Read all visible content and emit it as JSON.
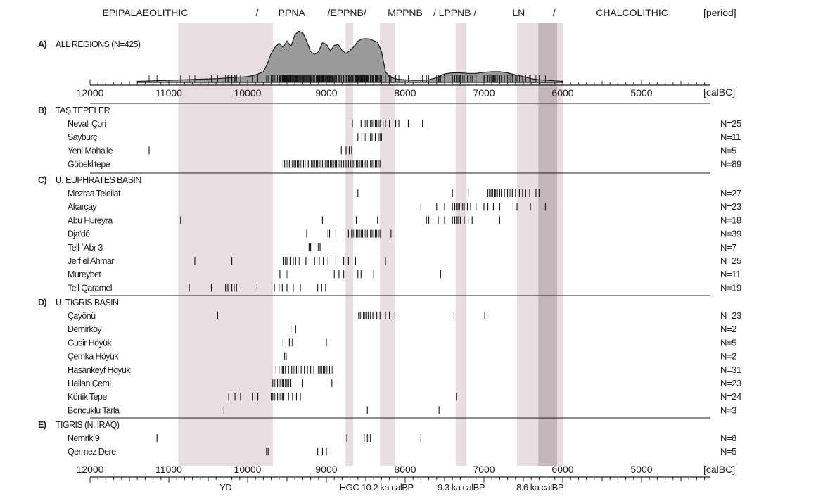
{
  "chart_data": {
    "type": "event-plot",
    "x_axis": {
      "range": [
        12000,
        6000
      ],
      "ticks": [
        "12000",
        "11000",
        "10000",
        "9000",
        "8000",
        "7000",
        "6000",
        "5000"
      ],
      "unit": "[calBC]"
    },
    "periods": [
      "EPIPALAEOLITHIC",
      "/",
      "PPNA",
      "/EPPNB/",
      "MPPNB",
      "/ LPPNB /",
      "LN",
      "/",
      "CHALCOLITHIC"
    ],
    "period_unit": "[period]",
    "period_positions": [
      11300,
      9880,
      9440,
      8740,
      8000,
      7370,
      6560,
      6110,
      5120
    ],
    "shaded_bands": [
      {
        "from": 10880,
        "to": 9680,
        "label": "YD",
        "shade": "#e8dde1"
      },
      {
        "from": 8760,
        "to": 8660,
        "label": "HGC",
        "shade": "#e8dde1"
      },
      {
        "from": 8320,
        "to": 8130,
        "label": "10.2 ka calBP",
        "shade": "#e8dde1"
      },
      {
        "from": 7360,
        "to": 7220,
        "label": "9.3 ka calBP",
        "shade": "#e8dde1"
      },
      {
        "from": 6580,
        "to": 6000,
        "label": "8.6 ka calBP",
        "shade": "#e8dde1"
      },
      {
        "from": 6310,
        "to": 6070,
        "label": "",
        "shade": "#c3b7bc"
      }
    ],
    "summed_probability": {
      "label": "A)",
      "title": "ALL REGIONS (N=425)",
      "curve": [
        [
          11400,
          0.02
        ],
        [
          11200,
          0.03
        ],
        [
          11000,
          0.04
        ],
        [
          10800,
          0.05
        ],
        [
          10600,
          0.06
        ],
        [
          10400,
          0.07
        ],
        [
          10200,
          0.09
        ],
        [
          10000,
          0.11
        ],
        [
          9900,
          0.14
        ],
        [
          9800,
          0.2
        ],
        [
          9750,
          0.35
        ],
        [
          9700,
          0.55
        ],
        [
          9650,
          0.67
        ],
        [
          9600,
          0.74
        ],
        [
          9550,
          0.66
        ],
        [
          9500,
          0.78
        ],
        [
          9450,
          0.68
        ],
        [
          9400,
          0.9
        ],
        [
          9350,
          0.97
        ],
        [
          9300,
          0.94
        ],
        [
          9250,
          0.78
        ],
        [
          9200,
          0.58
        ],
        [
          9150,
          0.53
        ],
        [
          9100,
          0.58
        ],
        [
          9050,
          0.75
        ],
        [
          9000,
          0.72
        ],
        [
          8950,
          0.6
        ],
        [
          8900,
          0.7
        ],
        [
          8850,
          0.72
        ],
        [
          8800,
          0.6
        ],
        [
          8750,
          0.55
        ],
        [
          8700,
          0.6
        ],
        [
          8650,
          0.68
        ],
        [
          8600,
          0.78
        ],
        [
          8550,
          0.82
        ],
        [
          8500,
          0.83
        ],
        [
          8450,
          0.82
        ],
        [
          8400,
          0.79
        ],
        [
          8350,
          0.76
        ],
        [
          8300,
          0.58
        ],
        [
          8250,
          0.2
        ],
        [
          8200,
          0.1
        ],
        [
          8100,
          0.06
        ],
        [
          8000,
          0.05
        ],
        [
          7900,
          0.04
        ],
        [
          7800,
          0.04
        ],
        [
          7700,
          0.05
        ],
        [
          7600,
          0.09
        ],
        [
          7500,
          0.16
        ],
        [
          7400,
          0.18
        ],
        [
          7300,
          0.18
        ],
        [
          7200,
          0.17
        ],
        [
          7100,
          0.17
        ],
        [
          7000,
          0.19
        ],
        [
          6900,
          0.2
        ],
        [
          6800,
          0.2
        ],
        [
          6700,
          0.18
        ],
        [
          6600,
          0.14
        ],
        [
          6500,
          0.11
        ],
        [
          6400,
          0.07
        ],
        [
          6300,
          0.05
        ],
        [
          6200,
          0.04
        ],
        [
          6100,
          0.03
        ],
        [
          6000,
          0.02
        ]
      ]
    },
    "groups": [
      {
        "label": "B)",
        "title": "TAŞ TEPELER",
        "sites": [
          {
            "name": "Nevali Çori",
            "n": "N=25",
            "dates": [
              8670,
              8560,
              8520,
              8500,
              8480,
              8460,
              8440,
              8420,
              8400,
              8380,
              8360,
              8340,
              8320,
              8280,
              8250,
              8200,
              8120,
              8080,
              7960,
              7780
            ]
          },
          {
            "name": "Sayburç",
            "n": "N=11",
            "dates": [
              8600,
              8550,
              8520,
              8500,
              8460,
              8440,
              8420,
              8380,
              8340,
              8320,
              8300
            ]
          },
          {
            "name": "Yeni Mahalle",
            "n": "N=5",
            "dates": [
              11250,
              8810,
              8750,
              8710,
              8680
            ]
          },
          {
            "name": "Göbeklitepe",
            "n": "N=89",
            "dates": [
              9550,
              9530,
              9510,
              9490,
              9470,
              9450,
              9430,
              9410,
              9390,
              9370,
              9350,
              9330,
              9310,
              9290,
              9270,
              9230,
              9210,
              9190,
              9170,
              9150,
              9130,
              9110,
              9090,
              9070,
              9050,
              9030,
              9010,
              8990,
              8970,
              8950,
              8930,
              8910,
              8890,
              8870,
              8850,
              8830,
              8810,
              8780,
              8750,
              8720,
              8690,
              8660,
              8640,
              8620,
              8600,
              8580,
              8560,
              8540,
              8520,
              8500,
              8480,
              8460,
              8440,
              8420,
              8400,
              8380,
              8360,
              8340,
              8320
            ]
          }
        ]
      },
      {
        "label": "C)",
        "title": "U. EUPHRATES BASIN",
        "sites": [
          {
            "name": "Mezraa Teleilat",
            "n": "N=27",
            "dates": [
              8600,
              7400,
              7200,
              6950,
              6930,
              6910,
              6890,
              6870,
              6850,
              6830,
              6800,
              6780,
              6740,
              6700,
              6680,
              6660,
              6640,
              6600,
              6550,
              6510,
              6470,
              6420,
              6340,
              6300
            ]
          },
          {
            "name": "Akarçay",
            "n": "N=23",
            "dates": [
              7800,
              7600,
              7500,
              7400,
              7370,
              7350,
              7330,
              7310,
              7290,
              7270,
              7250,
              7210,
              7170,
              7100,
              7000,
              6950,
              6880,
              6800,
              6630,
              6580,
              6410,
              6220
            ]
          },
          {
            "name": "Abu Hureyra",
            "n": "N=18",
            "dates": [
              10850,
              9050,
              8620,
              8350,
              7730,
              7700,
              7580,
              7500,
              7400,
              7370,
              7350,
              7330,
              7300,
              7250,
              7200,
              7150,
              6800
            ]
          },
          {
            "name": "Dja'dé",
            "n": "N=39",
            "dates": [
              9250,
              8980,
              8960,
              8880,
              8720,
              8680,
              8660,
              8640,
              8620,
              8600,
              8580,
              8560,
              8540,
              8520,
              8500,
              8480,
              8460,
              8440,
              8420,
              8400,
              8380,
              8360,
              8340,
              8320,
              8180
            ]
          },
          {
            "name": "Tell `Abr 3",
            "n": "N=7",
            "dates": [
              9220,
              9200,
              9120,
              9100,
              9080
            ]
          },
          {
            "name": "Jerf el Ahmar",
            "n": "N=25",
            "dates": [
              10670,
              10200,
              9540,
              9520,
              9500,
              9460,
              9420,
              9390,
              9360,
              9340,
              9260,
              9150,
              9120,
              9090,
              9040,
              8980,
              8880,
              8780,
              8720,
              8630,
              8250
            ]
          },
          {
            "name": "Mureybet",
            "n": "N=11",
            "dates": [
              9590,
              9510,
              9490,
              8900,
              8840,
              8780,
              8600,
              8560,
              8400,
              7550
            ]
          },
          {
            "name": "Tell Qaramel",
            "n": "N=19",
            "dates": [
              10740,
              10460,
              10280,
              10250,
              10200,
              10170,
              10140,
              9880,
              9660,
              9600,
              9560,
              9500,
              9420,
              9330,
              9110,
              9060,
              9010
            ]
          }
        ]
      },
      {
        "label": "D)",
        "title": "U. TIGRIS BASIN",
        "sites": [
          {
            "name": "Çayönü",
            "n": "N=23",
            "dates": [
              10380,
              8590,
              8570,
              8550,
              8530,
              8510,
              8490,
              8470,
              8440,
              8410,
              8360,
              8320,
              8250,
              8200,
              8130,
              7380,
              6990,
              6960
            ]
          },
          {
            "name": "Demirköy",
            "n": "N=2",
            "dates": [
              9450,
              9390
            ]
          },
          {
            "name": "Gusir Höyük",
            "n": "N=5",
            "dates": [
              9550,
              9470,
              9450,
              9430,
              9000
            ]
          },
          {
            "name": "Çemka Höyük",
            "n": "N=2",
            "dates": [
              9530,
              9510
            ]
          },
          {
            "name": "Hasankeyf Höyük",
            "n": "N=31",
            "dates": [
              9640,
              9600,
              9560,
              9540,
              9520,
              9480,
              9440,
              9420,
              9400,
              9380,
              9360,
              9320,
              9280,
              9240,
              9200,
              9160,
              9120,
              9100,
              9080,
              9060,
              9040,
              9020,
              9000,
              8980,
              8960,
              8940,
              8920
            ]
          },
          {
            "name": "Hallan Çemi",
            "n": "N=23",
            "dates": [
              9680,
              9660,
              9640,
              9620,
              9600,
              9580,
              9560,
              9540,
              9520,
              9500,
              9480,
              9460,
              9300,
              8930
            ]
          },
          {
            "name": "Körtik Tepe",
            "n": "N=24",
            "dates": [
              10240,
              10160,
              10090,
              9940,
              9870,
              9700,
              9680,
              9660,
              9640,
              9620,
              9600,
              9580,
              9560,
              9540,
              9480,
              9430,
              9380,
              9330,
              7350
            ]
          },
          {
            "name": "Boncuklu Tarla",
            "n": "N=3",
            "dates": [
              10300,
              8480,
              7570
            ]
          }
        ]
      },
      {
        "label": "E)",
        "title": "TIGRIS (N. IRAQ)",
        "sites": [
          {
            "name": "Nemrik 9",
            "n": "N=8",
            "dates": [
              11150,
              8740,
              8520,
              8480,
              8460,
              8440,
              7800
            ]
          },
          {
            "name": "Qermez Dere",
            "n": "N=5",
            "dates": [
              9760,
              9740,
              9110,
              9050,
              9000
            ]
          }
        ]
      }
    ]
  }
}
